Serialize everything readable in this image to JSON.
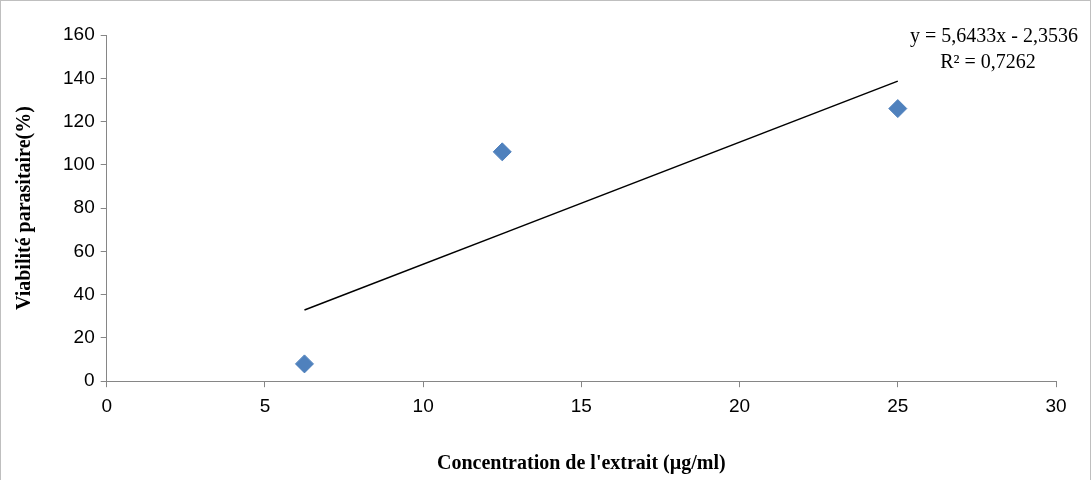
{
  "chart_data": {
    "type": "scatter",
    "xlabel": "Concentration de l'extrait (µg/ml)",
    "ylabel": "Viabilité parasitaire(%)",
    "xlim": [
      0,
      30
    ],
    "xticks": [
      0,
      5,
      10,
      15,
      20,
      25,
      30
    ],
    "ylim": [
      0,
      160
    ],
    "yticks": [
      0,
      20,
      40,
      60,
      80,
      100,
      120,
      140,
      160
    ],
    "grid": false,
    "legend": false,
    "annotations": [
      "y = 5,6433x - 2,3536",
      "R² = 0,7262"
    ],
    "series": [
      {
        "color": "#4f81bd",
        "marker": "diamond",
        "x": [
          6.25,
          12.5,
          25
        ],
        "values": [
          8,
          106,
          126
        ]
      },
      {
        "type": "line",
        "color": "#000000",
        "marker": "none",
        "line_style": "solid",
        "x": [
          6.25,
          25
        ],
        "values": [
          32.9,
          138.7
        ]
      }
    ]
  }
}
